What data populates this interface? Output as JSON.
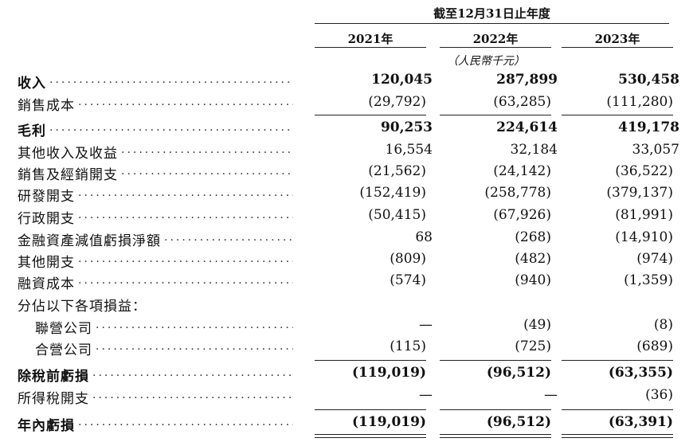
{
  "header": {
    "period_title": "截至12月31日止年度",
    "years": [
      "2021年",
      "2022年",
      "2023年"
    ],
    "unit": "（人民幣千元）"
  },
  "rows": [
    {
      "label": "收入",
      "bold": true,
      "v": [
        "120,045",
        "287,899",
        "530,458"
      ]
    },
    {
      "label": "銷售成本",
      "bold": false,
      "v": [
        "(29,792)",
        "(63,285)",
        "(111,280)"
      ]
    },
    {
      "label": "毛利",
      "bold": true,
      "v": [
        "90,253",
        "224,614",
        "419,178"
      ]
    },
    {
      "label": "其他收入及收益",
      "bold": false,
      "v": [
        "16,554",
        "32,184",
        "33,057"
      ]
    },
    {
      "label": "銷售及經銷開支",
      "bold": false,
      "v": [
        "(21,562)",
        "(24,142)",
        "(36,522)"
      ]
    },
    {
      "label": "研發開支",
      "bold": false,
      "v": [
        "(152,419)",
        "(258,778)",
        "(379,137)"
      ]
    },
    {
      "label": "行政開支",
      "bold": false,
      "v": [
        "(50,415)",
        "(67,926)",
        "(81,991)"
      ]
    },
    {
      "label": "金融資產減值虧損淨額",
      "bold": false,
      "v": [
        "68",
        "(268)",
        "(14,910)"
      ]
    },
    {
      "label": "其他開支",
      "bold": false,
      "v": [
        "(809)",
        "(482)",
        "(974)"
      ]
    },
    {
      "label": "融資成本",
      "bold": false,
      "v": [
        "(574)",
        "(940)",
        "(1,359)"
      ]
    },
    {
      "label": "分佔以下各項損益：",
      "bold": false,
      "v": [
        "",
        "",
        ""
      ]
    },
    {
      "label": "聯營公司",
      "bold": false,
      "v": [
        "—",
        "(49)",
        "(8)"
      ]
    },
    {
      "label": "合營公司",
      "bold": false,
      "v": [
        "(115)",
        "(725)",
        "(689)"
      ]
    },
    {
      "label": "除稅前虧損",
      "bold": true,
      "v": [
        "(119,019)",
        "(96,512)",
        "(63,355)"
      ]
    },
    {
      "label": "所得稅開支",
      "bold": false,
      "v": [
        "—",
        "—",
        "(36)"
      ]
    },
    {
      "label": "年內虧損",
      "bold": true,
      "v": [
        "(119,019)",
        "(96,512)",
        "(63,391)"
      ]
    }
  ]
}
